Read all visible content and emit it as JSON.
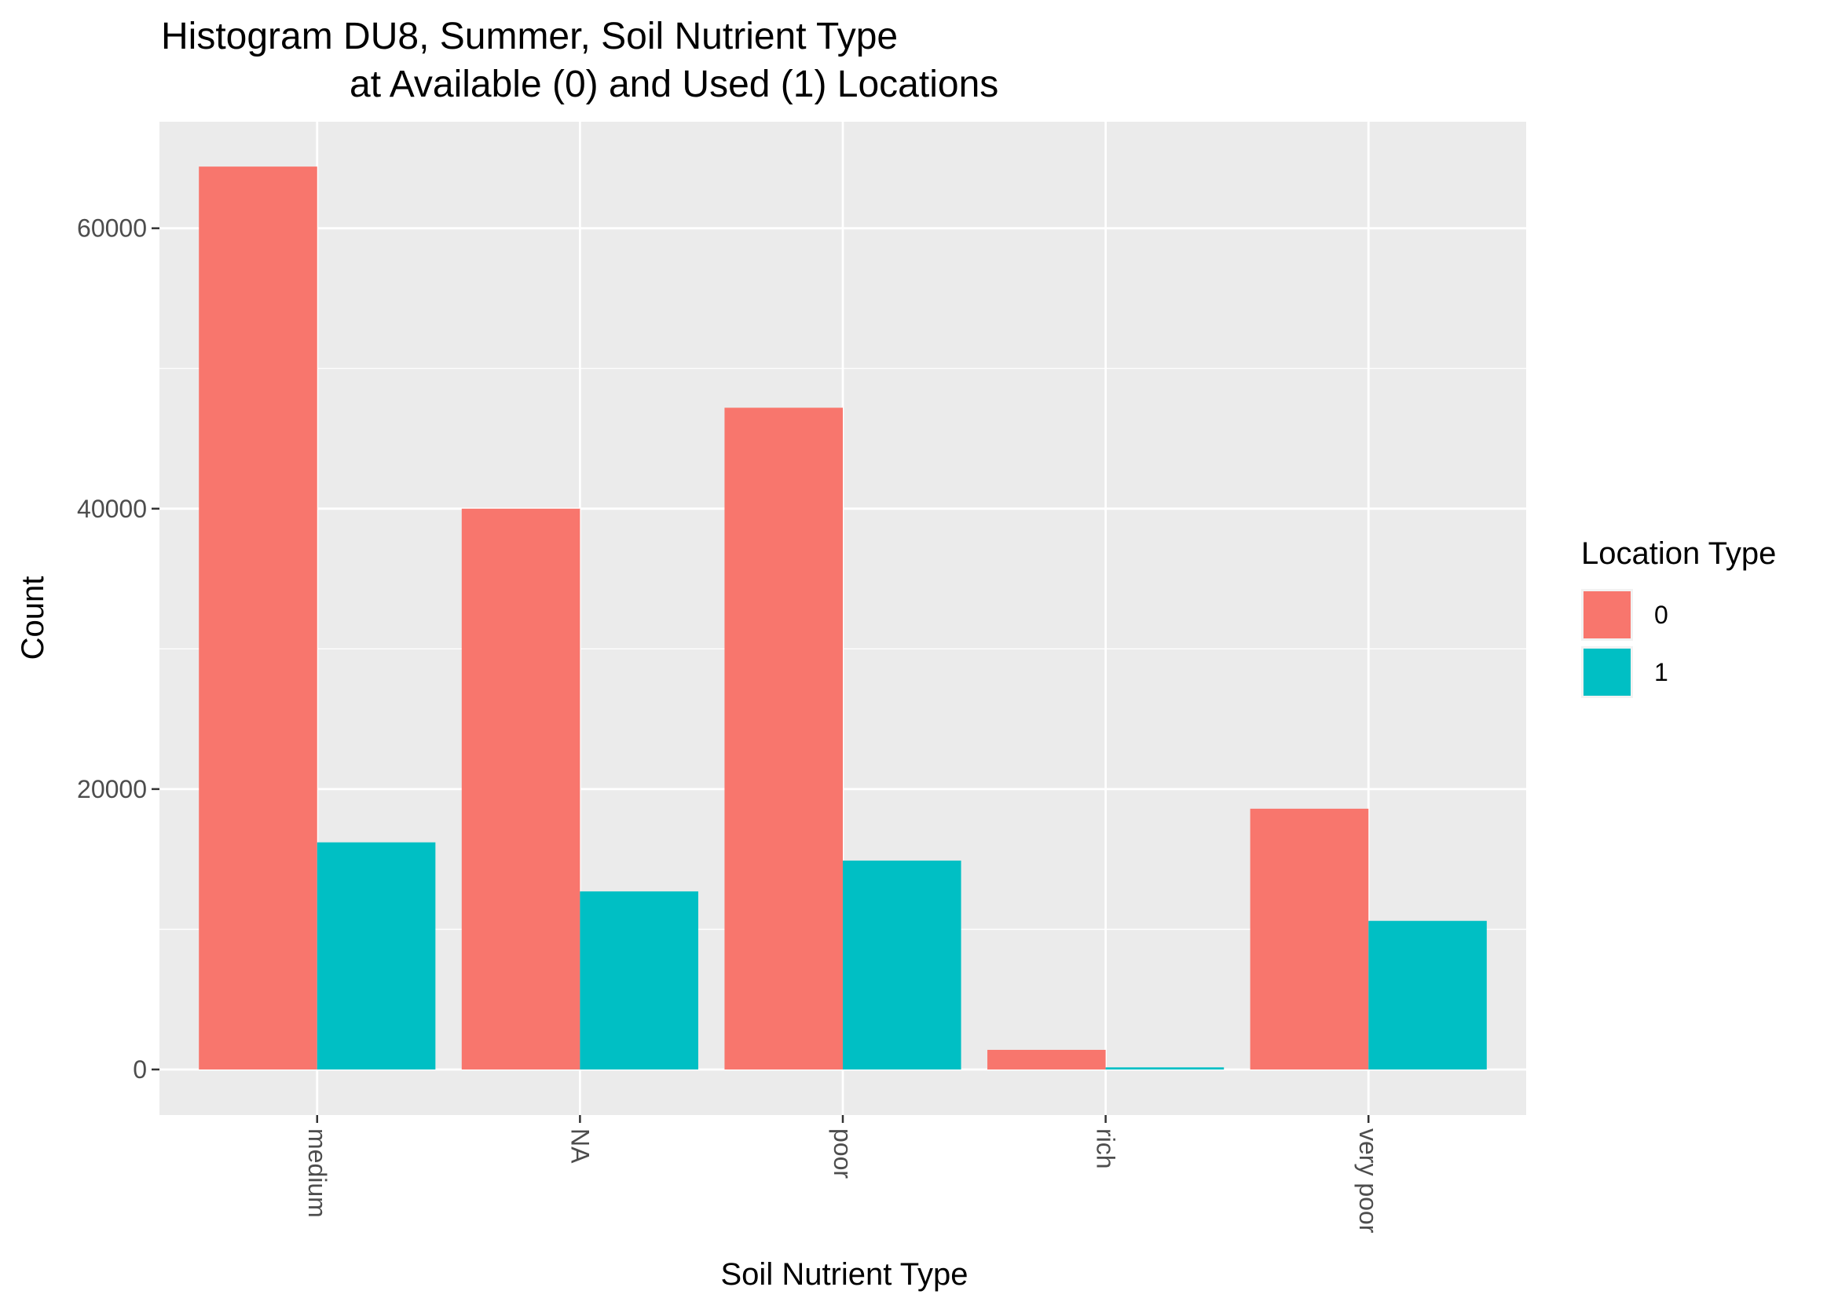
{
  "chart_data": {
    "type": "bar",
    "title_line1": "Histogram DU8, Summer, Soil Nutrient Type",
    "title_line2": "at Available (0) and Used (1) Locations",
    "xlabel": "Soil Nutrient Type",
    "ylabel": "Count",
    "categories": [
      "medium",
      "NA",
      "poor",
      "rich",
      "very poor"
    ],
    "series": [
      {
        "name": "0",
        "color": "#F8766D",
        "values": [
          64400,
          40000,
          47200,
          1400,
          18600
        ]
      },
      {
        "name": "1",
        "color": "#00BFC4",
        "values": [
          16200,
          12700,
          14900,
          150,
          10600
        ]
      }
    ],
    "ylim": [
      -3250,
      67600
    ],
    "y_ticks": [
      0,
      20000,
      40000,
      60000
    ],
    "y_tick_labels": [
      "0",
      "20000",
      "40000",
      "60000"
    ],
    "grid": true,
    "legend": {
      "title": "Location Type",
      "position": "right",
      "entries": [
        "0",
        "1"
      ]
    },
    "panel_background": "#EBEBEB",
    "grid_color": "#FFFFFF"
  }
}
